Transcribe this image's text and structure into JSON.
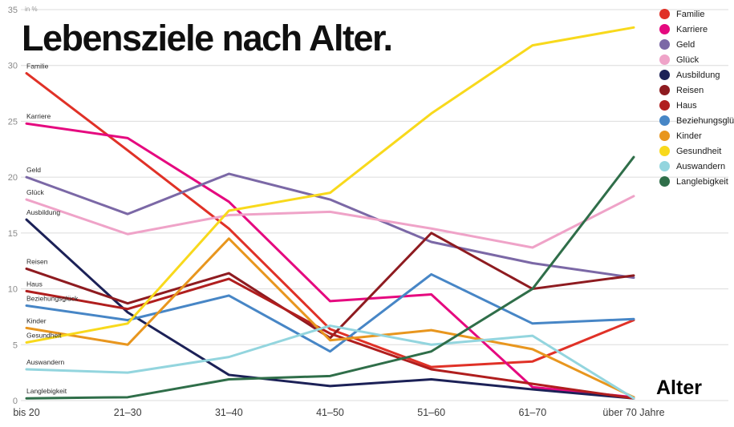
{
  "title": "Lebensziele nach Alter.",
  "chart_data": {
    "type": "line",
    "title": "Lebensziele nach Alter.",
    "xlabel": "Alter",
    "ylabel": "in %",
    "ylim": [
      0,
      35
    ],
    "y_ticks": [
      0,
      5,
      10,
      15,
      20,
      25,
      30,
      35
    ],
    "grid": true,
    "legend_position": "top-right",
    "categories": [
      "bis 20",
      "21–30",
      "31–40",
      "41–50",
      "51–60",
      "61–70",
      "über 70 Jahre"
    ],
    "series": [
      {
        "name": "Familie",
        "color": "#e03127",
        "values": [
          29.3,
          22.4,
          15.4,
          6.4,
          3.0,
          3.5,
          7.2
        ]
      },
      {
        "name": "Karriere",
        "color": "#e5097f",
        "values": [
          24.8,
          23.5,
          17.8,
          8.9,
          9.5,
          1.2,
          0.3
        ]
      },
      {
        "name": "Geld",
        "color": "#7b68a6",
        "values": [
          20.0,
          16.7,
          20.3,
          18.0,
          14.2,
          12.3,
          11.0
        ]
      },
      {
        "name": "Glück",
        "color": "#efa3c8",
        "values": [
          18.0,
          14.9,
          16.6,
          16.9,
          15.4,
          13.7,
          18.3
        ]
      },
      {
        "name": "Ausbildung",
        "color": "#1c2157",
        "values": [
          16.2,
          7.9,
          2.3,
          1.3,
          1.9,
          1.0,
          0.2
        ]
      },
      {
        "name": "Reisen",
        "color": "#8e1b20",
        "values": [
          11.8,
          8.7,
          11.4,
          5.6,
          15.0,
          10.0,
          11.2
        ]
      },
      {
        "name": "Haus",
        "color": "#b01e1e",
        "values": [
          9.8,
          8.2,
          10.9,
          6.0,
          2.8,
          1.5,
          0.2
        ]
      },
      {
        "name": "Beziehungsglück",
        "color": "#4786c6",
        "values": [
          8.5,
          7.2,
          9.4,
          4.4,
          11.3,
          6.9,
          7.3
        ]
      },
      {
        "name": "Kinder",
        "color": "#e8961e",
        "values": [
          6.5,
          5.0,
          14.5,
          5.4,
          6.3,
          4.6,
          0.3
        ]
      },
      {
        "name": "Gesundheit",
        "color": "#f8d91c",
        "values": [
          5.2,
          6.9,
          17.0,
          18.6,
          25.7,
          31.8,
          33.4
        ]
      },
      {
        "name": "Auswandern",
        "color": "#93d5de",
        "values": [
          2.8,
          2.5,
          3.9,
          6.7,
          5.0,
          5.8,
          0.2
        ]
      },
      {
        "name": "Langlebigkeit",
        "color": "#2f6e49",
        "values": [
          0.2,
          0.3,
          1.9,
          2.2,
          4.4,
          10.0,
          21.8
        ]
      }
    ]
  }
}
